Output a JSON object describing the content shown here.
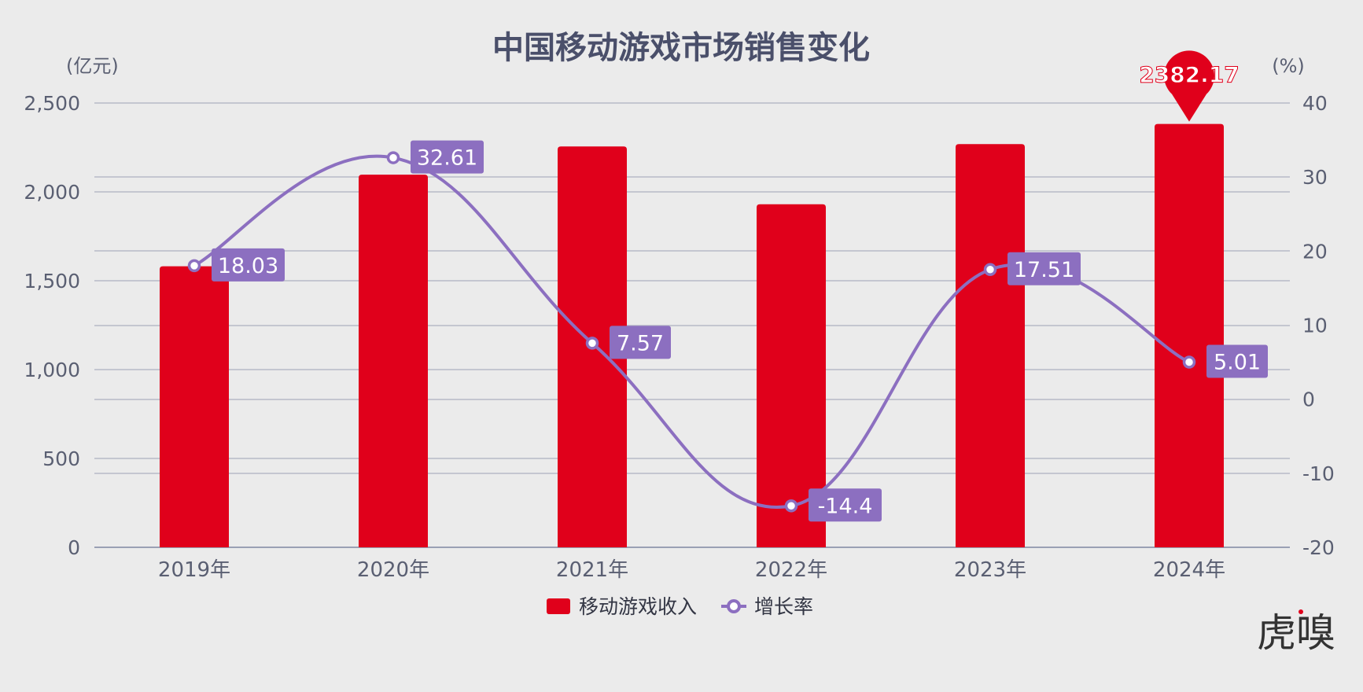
{
  "chart_data": {
    "type": "bar",
    "title": "中国移动游戏市场销售变化",
    "categories": [
      "2019年",
      "2020年",
      "2021年",
      "2022年",
      "2023年",
      "2024年"
    ],
    "series": [
      {
        "name": "移动游戏收入",
        "type": "bar",
        "axis": "left",
        "values": [
          1581.1,
          2096.76,
          2255.38,
          1930.58,
          2268.6,
          2382.17
        ],
        "color": "#e0001b"
      },
      {
        "name": "增长率",
        "type": "line",
        "axis": "right",
        "values": [
          18.03,
          32.61,
          7.57,
          -14.4,
          17.51,
          5.01
        ],
        "color": "#8c6fc0"
      }
    ],
    "left_axis": {
      "unit": "(亿元)",
      "ylim": [
        0,
        2500
      ],
      "ticks": [
        "0",
        "500",
        "1,000",
        "1,500",
        "2,000",
        "2,500"
      ]
    },
    "right_axis": {
      "unit": "(%)",
      "ylim": [
        -20,
        40
      ],
      "ticks": [
        "-20",
        "-10",
        "0",
        "10",
        "20",
        "30",
        "40"
      ]
    },
    "peak_label": "2382.17",
    "line_labels": [
      "18.03",
      "32.61",
      "7.57",
      "-14.4",
      "17.51",
      "5.01"
    ],
    "grid": true,
    "legend_position": "bottom"
  },
  "logo_text": "虎嗅"
}
